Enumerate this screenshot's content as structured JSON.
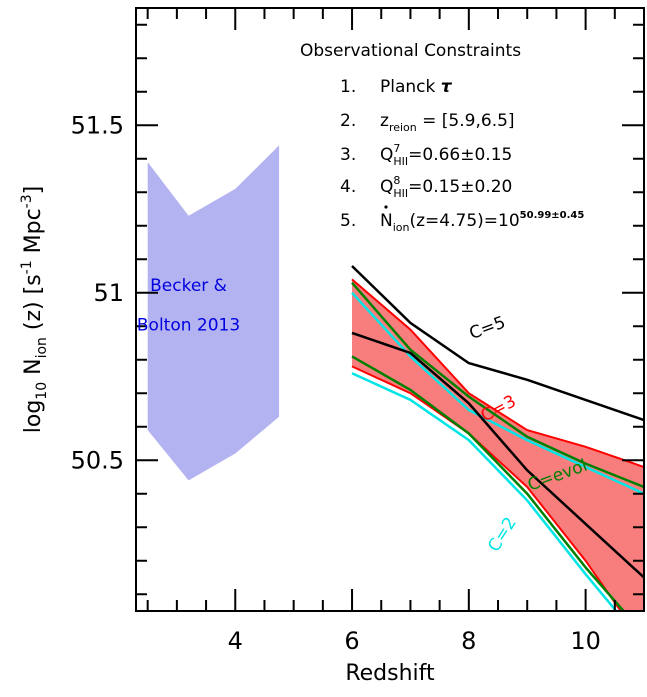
{
  "chart_data": {
    "type": "line",
    "xlabel": "Redshift",
    "ylabel_prefix": "log",
    "ylabel_sub": "10",
    "ylabel_ndot": "N",
    "ylabel_ion": "ion",
    "ylabel_z": "(z)",
    "ylabel_units": "[s",
    "ylabel_units_exp1": "-1",
    "ylabel_units_mid": " Mpc",
    "ylabel_units_exp2": "-3",
    "ylabel_units_end": "]",
    "xlim": [
      2.3,
      11.0
    ],
    "ylim": [
      50.05,
      51.85
    ],
    "x_ticks": [
      4,
      6,
      8,
      10
    ],
    "x_tick_labels": [
      "4",
      "6",
      "8",
      "10"
    ],
    "y_ticks": [
      50.5,
      51.0,
      51.5
    ],
    "y_tick_labels": [
      "50.5",
      "51",
      "51.5"
    ],
    "x_minor_step": 0.5,
    "y_minor_step": 0.1,
    "observational_constraints": {
      "title": "Observational Constraints",
      "items": [
        {
          "num": "1.",
          "text": "Planck ",
          "extra": "τ"
        },
        {
          "num": "2.",
          "text": "z",
          "sub": "reion",
          "after": " = [5.9,6.5]"
        },
        {
          "num": "3.",
          "text": "Q",
          "sup": "7",
          "sub": "HII",
          "after": "=0.66±0.15"
        },
        {
          "num": "4.",
          "text": "Q",
          "sup": "8",
          "sub": "HII",
          "after": "=0.15±0.20"
        },
        {
          "num": "5.",
          "text": "N",
          "sub": "ion",
          "after": "(z=4.75)=10",
          "sup": "50.99±0.45"
        }
      ]
    },
    "becker_band": {
      "label_line1": "Becker &",
      "label_line2": "Bolton 2013",
      "color": "#b3b3f2",
      "label_color": "#0000e0",
      "upper": [
        [
          2.5,
          51.39
        ],
        [
          3.2,
          51.23
        ],
        [
          4.0,
          51.31
        ],
        [
          4.75,
          51.44
        ]
      ],
      "lower": [
        [
          2.5,
          50.59
        ],
        [
          3.2,
          50.44
        ],
        [
          4.0,
          50.52
        ],
        [
          4.75,
          50.63
        ]
      ]
    },
    "red_band": {
      "name": "C=3",
      "color": "#ff0000",
      "fill": "#f87e7e",
      "upper": [
        [
          6,
          51.04
        ],
        [
          7,
          50.89
        ],
        [
          8,
          50.7
        ],
        [
          9,
          50.59
        ],
        [
          10,
          50.54
        ],
        [
          11,
          50.48
        ]
      ],
      "lower": [
        [
          6,
          50.78
        ],
        [
          7,
          50.7
        ],
        [
          8,
          50.58
        ],
        [
          9,
          50.42
        ],
        [
          10,
          50.2
        ],
        [
          11,
          49.95
        ]
      ]
    },
    "series": [
      {
        "name": "C=5",
        "color": "#000000",
        "x": [
          6,
          7,
          8,
          9,
          10,
          11
        ],
        "y": [
          51.08,
          50.91,
          50.79,
          50.74,
          50.68,
          50.62
        ]
      },
      {
        "name": "",
        "color": "#000000",
        "x": [
          6,
          7,
          8,
          9,
          10,
          11
        ],
        "y": [
          50.88,
          50.82,
          50.67,
          50.47,
          50.31,
          50.15
        ]
      },
      {
        "name": "C=evol",
        "color": "#008000",
        "x": [
          6,
          7,
          8,
          9,
          10,
          11
        ],
        "y": [
          51.03,
          50.83,
          50.69,
          50.57,
          50.49,
          50.42
        ]
      },
      {
        "name": "",
        "color": "#008000",
        "x": [
          6,
          7,
          8,
          9,
          10,
          11
        ],
        "y": [
          50.81,
          50.71,
          50.58,
          50.4,
          50.18,
          49.98
        ]
      },
      {
        "name": "C=2",
        "color": "#00e5e5",
        "x": [
          6,
          7,
          8,
          9,
          10,
          11
        ],
        "y": [
          50.76,
          50.68,
          50.56,
          50.38,
          50.16,
          49.95
        ]
      },
      {
        "name": "",
        "color": "#00e5e5",
        "x": [
          6,
          7,
          8,
          9,
          10,
          11
        ],
        "y": [
          51.0,
          50.81,
          50.65,
          50.56,
          50.48,
          50.4
        ]
      }
    ],
    "series_labels": [
      {
        "text": "C=5",
        "color": "#000000",
        "x": 8.35,
        "y": 50.88,
        "angle": -20
      },
      {
        "text": "C=3",
        "color": "#ff0000",
        "x": 8.55,
        "y": 50.64,
        "angle": -28
      },
      {
        "text": "C=evol",
        "color": "#008000",
        "x": 9.55,
        "y": 50.44,
        "angle": -20
      },
      {
        "text": "C=2",
        "color": "#00e5e5",
        "x": 8.65,
        "y": 50.27,
        "angle": -58
      }
    ]
  }
}
